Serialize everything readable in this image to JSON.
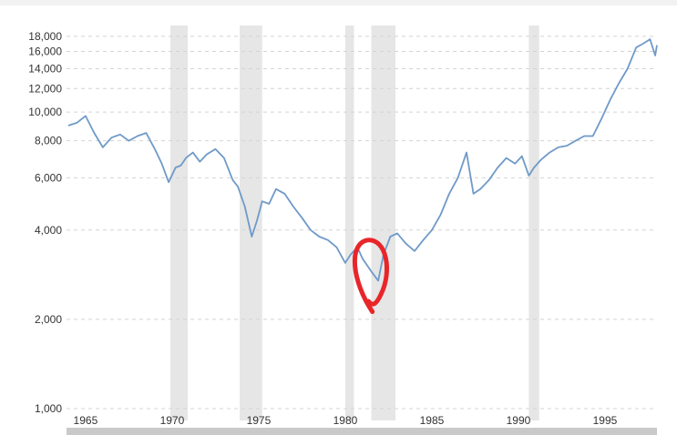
{
  "chart_data": {
    "type": "line",
    "title": "",
    "xlabel": "",
    "ylabel": "",
    "y_scale": "log",
    "ylim": [
      1000,
      18500
    ],
    "xlim": [
      1963.9,
      1998.0
    ],
    "grid": "horizontal dashed",
    "legend": "none",
    "x_ticks": [
      1965,
      1970,
      1975,
      1980,
      1985,
      1990,
      1995
    ],
    "x_tick_labels": [
      "1965",
      "1970",
      "1975",
      "1980",
      "1985",
      "1990",
      "1995"
    ],
    "y_ticks": [
      1000,
      2000,
      4000,
      6000,
      8000,
      10000,
      12000,
      14000,
      16000,
      18000
    ],
    "y_tick_labels": [
      "1,000",
      "2,000",
      "4,000",
      "6,000",
      "8,000",
      "10,000",
      "12,000",
      "14,000",
      "16,000",
      "18,000"
    ],
    "shaded_periods": [
      [
        1969.9,
        1970.9
      ],
      [
        1973.9,
        1975.2
      ],
      [
        1980.0,
        1980.5
      ],
      [
        1981.5,
        1982.9
      ],
      [
        1990.6,
        1991.2
      ]
    ],
    "annotation": {
      "type": "red-circle",
      "around_x": [
        1980.3,
        1982.5
      ],
      "around_y": [
        2150,
        3700
      ]
    },
    "series": [
      {
        "color": "#6f9ac8",
        "x": [
          1964.0,
          1964.5,
          1965.0,
          1965.5,
          1966.0,
          1966.5,
          1967.0,
          1967.5,
          1968.0,
          1968.5,
          1969.0,
          1969.4,
          1969.8,
          1970.2,
          1970.5,
          1970.8,
          1971.2,
          1971.6,
          1972.0,
          1972.5,
          1973.0,
          1973.5,
          1973.8,
          1974.2,
          1974.6,
          1974.9,
          1975.2,
          1975.6,
          1976.0,
          1976.5,
          1977.0,
          1977.5,
          1978.0,
          1978.5,
          1979.0,
          1979.5,
          1980.0,
          1980.3,
          1980.7,
          1981.0,
          1981.5,
          1981.9,
          1982.2,
          1982.6,
          1983.0,
          1983.5,
          1984.0,
          1984.5,
          1985.0,
          1985.5,
          1986.0,
          1986.5,
          1987.0,
          1987.4,
          1987.8,
          1988.3,
          1988.8,
          1989.3,
          1989.8,
          1990.2,
          1990.6,
          1990.9,
          1991.3,
          1991.8,
          1992.3,
          1992.8,
          1993.3,
          1993.8,
          1994.3,
          1994.8,
          1995.3,
          1995.8,
          1996.3,
          1996.8,
          1997.2,
          1997.6,
          1997.9,
          1998.0
        ],
        "values": [
          9000,
          9200,
          9700,
          8500,
          7600,
          8200,
          8400,
          8000,
          8300,
          8500,
          7500,
          6700,
          5800,
          6500,
          6600,
          7000,
          7300,
          6800,
          7200,
          7500,
          7000,
          5900,
          5600,
          4800,
          3800,
          4300,
          5000,
          4900,
          5500,
          5300,
          4800,
          4400,
          4000,
          3800,
          3700,
          3500,
          3100,
          3300,
          3500,
          3200,
          2900,
          2700,
          3300,
          3800,
          3900,
          3600,
          3400,
          3700,
          4000,
          4500,
          5300,
          6000,
          7300,
          5300,
          5500,
          5900,
          6500,
          7000,
          6700,
          7100,
          6100,
          6500,
          6900,
          7300,
          7600,
          7700,
          8000,
          8300,
          8300,
          9500,
          11000,
          12500,
          14000,
          16500,
          17000,
          17600,
          15500,
          16800
        ]
      }
    ]
  }
}
